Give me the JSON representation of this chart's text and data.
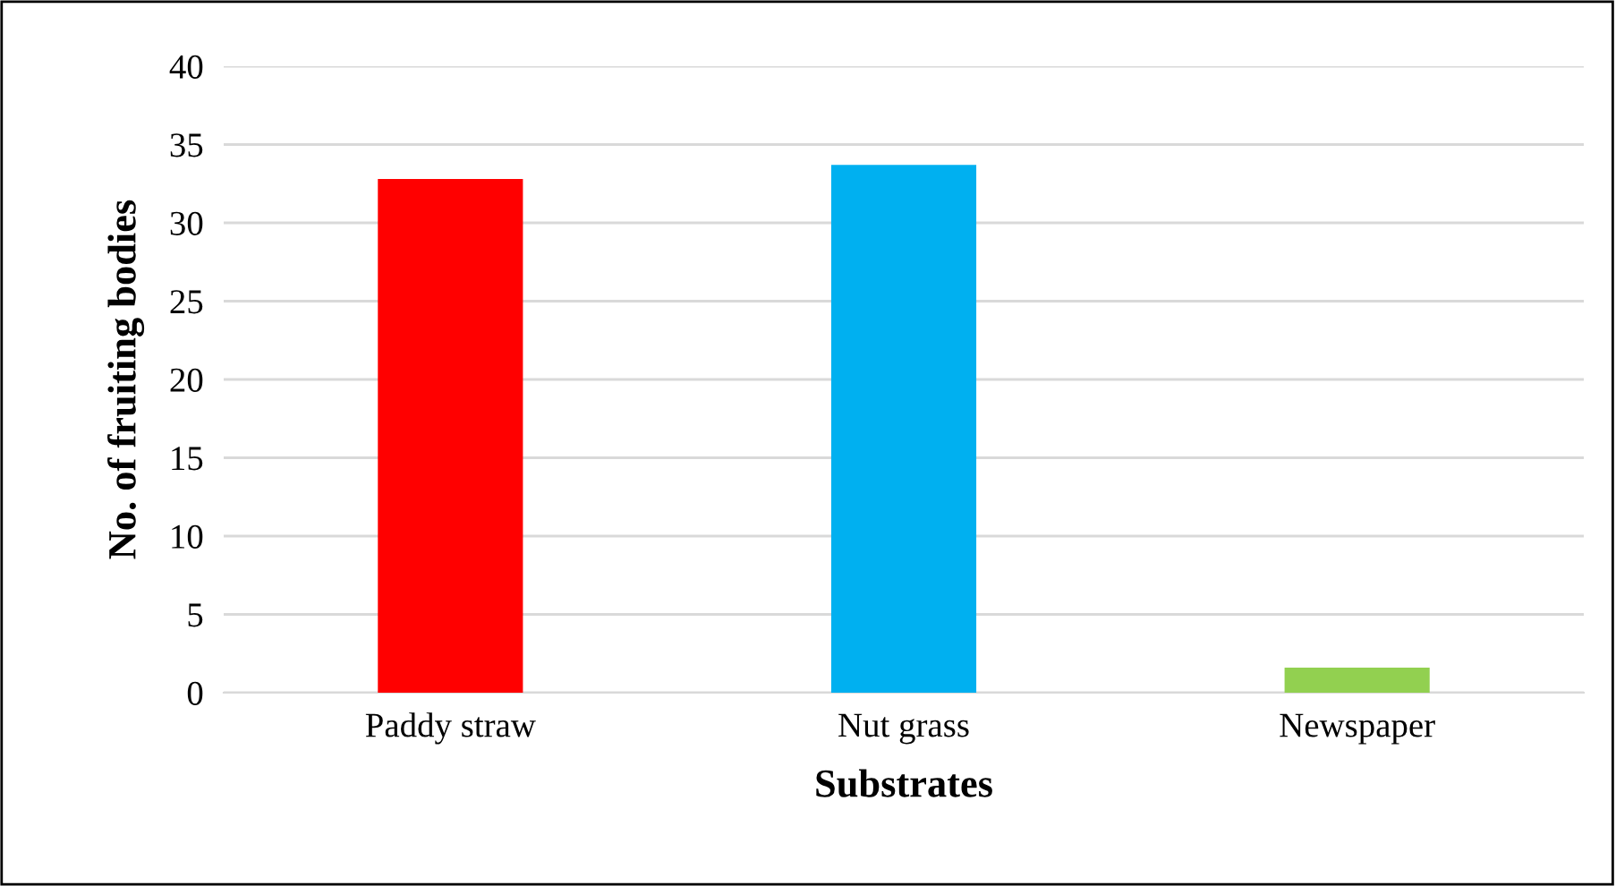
{
  "chart_data": {
    "type": "bar",
    "xlabel": "Substrates",
    "ylabel": "No. of fruiting bodies",
    "categories": [
      "Paddy straw",
      "Nut grass",
      "Newspaper"
    ],
    "values": [
      32.8,
      33.7,
      1.6
    ],
    "colors": [
      "#ff0000",
      "#00b0f0",
      "#92d050"
    ],
    "ylim": [
      0,
      40
    ],
    "yticks": [
      0,
      5,
      10,
      15,
      20,
      25,
      30,
      35,
      40
    ],
    "grid": "y",
    "legend": false
  }
}
